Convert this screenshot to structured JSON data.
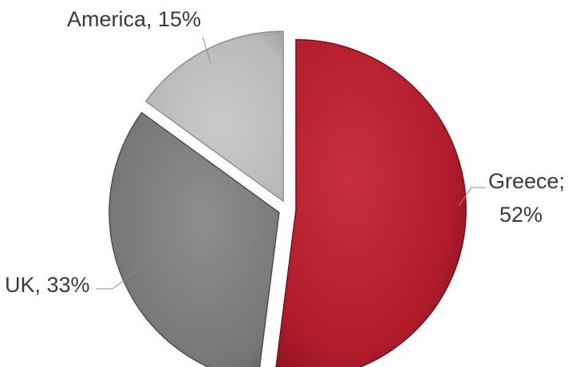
{
  "chart_data": {
    "type": "pie",
    "slices": [
      {
        "label": "Greece",
        "value": 52,
        "display": "Greece;",
        "display2": "52%",
        "color": "#b5202e",
        "edge": "#7a0f1a"
      },
      {
        "label": "UK",
        "value": 33,
        "display": "UK, 33%",
        "color": "#7c7c7c",
        "edge": "#4f4f4f"
      },
      {
        "label": "America",
        "value": 15,
        "display": "America, 15%",
        "color": "#bdbdbd",
        "edge": "#8e8e8e"
      }
    ]
  }
}
